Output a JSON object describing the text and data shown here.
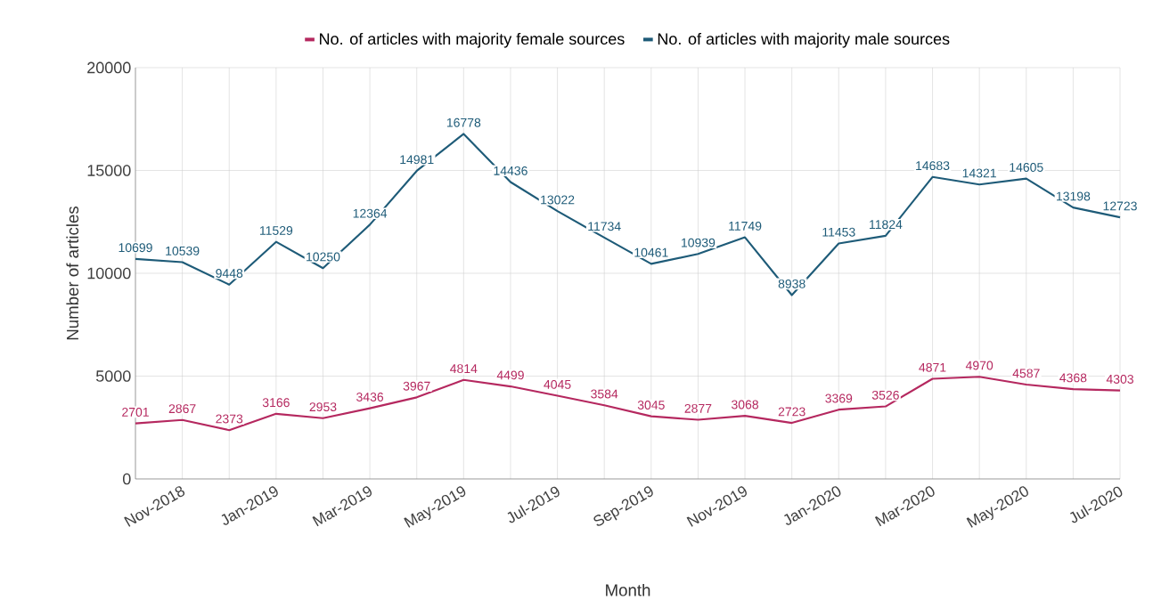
{
  "chart_data": {
    "type": "line",
    "xlabel": "Month",
    "ylabel": "Number of articles",
    "categories": [
      null,
      "Nov-2018",
      null,
      "Jan-2019",
      null,
      "Mar-2019",
      null,
      "May-2019",
      null,
      "Jul-2019",
      null,
      "Sep-2019",
      null,
      "Nov-2019",
      null,
      "Jan-2020",
      null,
      "Mar-2020",
      null,
      "May-2020",
      null,
      "Jul-2020"
    ],
    "series": [
      {
        "name": "No. of articles with majority female sources",
        "color": "#b5285f",
        "values": [
          2701,
          2867,
          2373,
          3166,
          2953,
          3436,
          3967,
          4814,
          4499,
          4045,
          3584,
          3045,
          2877,
          3068,
          2723,
          3369,
          3526,
          4871,
          4970,
          4587,
          4368,
          4303
        ]
      },
      {
        "name": "No. of articles with majority male sources",
        "color": "#1e5b78",
        "values": [
          10699,
          10539,
          9448,
          11529,
          10250,
          12364,
          14981,
          16778,
          14436,
          13022,
          11734,
          10461,
          10939,
          11749,
          8938,
          11453,
          11824,
          14683,
          14321,
          14605,
          13198,
          12723
        ]
      }
    ],
    "ylim": [
      0,
      20000
    ],
    "yticks": [
      0,
      5000,
      10000,
      15000,
      20000
    ],
    "grid": true,
    "legend": "top",
    "marker": "none",
    "line_style": "solid",
    "data_labels": true
  }
}
